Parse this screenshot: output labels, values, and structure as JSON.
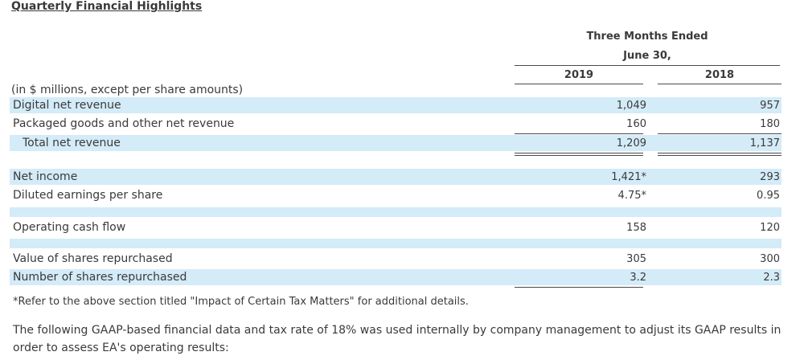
{
  "title": "Quarterly Financial Highlights",
  "header": {
    "period_line1": "Three Months Ended",
    "period_line2": "June 30,",
    "col_2019": "2019",
    "col_2018": "2018"
  },
  "units_note": "(in $ millions, except per share amounts)",
  "rows": [
    {
      "label": "Digital net revenue",
      "v2019": "1,049",
      "v2018": "957"
    },
    {
      "label": "Packaged goods and other net revenue",
      "v2019": "160",
      "v2018": "180"
    },
    {
      "label": "Total net revenue",
      "v2019": "1,209",
      "v2018": "1,137"
    },
    {
      "label": "Net income",
      "v2019": "1,421*",
      "v2018": "293"
    },
    {
      "label": "Diluted earnings per share",
      "v2019": "4.75*",
      "v2018": "0.95"
    },
    {
      "label": "Operating cash flow",
      "v2019": "158",
      "v2018": "120"
    },
    {
      "label": "Value of shares repurchased",
      "v2019": "305",
      "v2018": "300"
    },
    {
      "label": "Number of shares repurchased",
      "v2019": "3.2",
      "v2018": "2.3"
    }
  ],
  "footnote": "*Refer to the above section titled \"Impact of Certain Tax Matters\" for additional details.",
  "paragraph": "The following GAAP-based financial data and tax rate of 18% was used internally by company management to adjust its GAAP results in order to assess EA's operating results:",
  "colors": {
    "row_highlight": "#d4ebf8",
    "text": "#3a3a3a",
    "rule": "#4a4a4a"
  }
}
